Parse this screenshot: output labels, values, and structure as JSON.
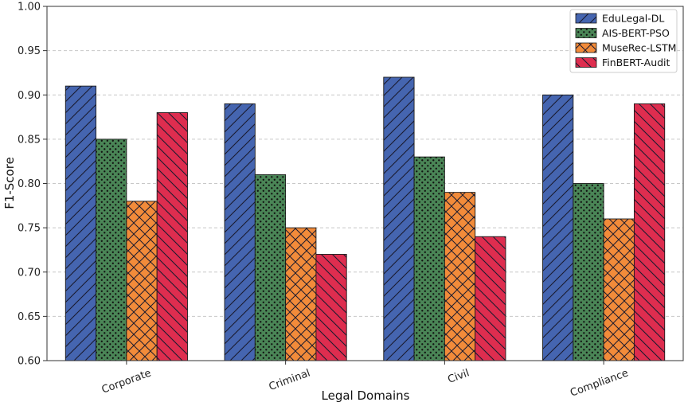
{
  "chart_data": {
    "type": "bar",
    "title": "",
    "xlabel": "Legal Domains",
    "ylabel": "F1-Score",
    "ylim": [
      0.6,
      1.0
    ],
    "yticks": [
      "0.60",
      "0.65",
      "0.70",
      "0.75",
      "0.80",
      "0.85",
      "0.90",
      "0.95",
      "1.00"
    ],
    "grid": "y-dashed",
    "legend_position": "top-right",
    "categories": [
      "Corporate",
      "Criminal",
      "Civil",
      "Compliance"
    ],
    "series": [
      {
        "name": "EduLegal-DL",
        "values": [
          0.91,
          0.89,
          0.92,
          0.9
        ],
        "color": "#4565b0",
        "hatch": "diagonal-forward"
      },
      {
        "name": "AIS-BERT-PSO",
        "values": [
          0.85,
          0.81,
          0.83,
          0.8
        ],
        "color": "#4a8556",
        "hatch": "dots"
      },
      {
        "name": "MuseRec-LSTM",
        "values": [
          0.78,
          0.75,
          0.79,
          0.76
        ],
        "color": "#f28b3a",
        "hatch": "crosshatch"
      },
      {
        "name": "FinBERT-Audit",
        "values": [
          0.88,
          0.72,
          0.74,
          0.89
        ],
        "color": "#de2d4f",
        "hatch": "diagonal-back"
      }
    ]
  }
}
